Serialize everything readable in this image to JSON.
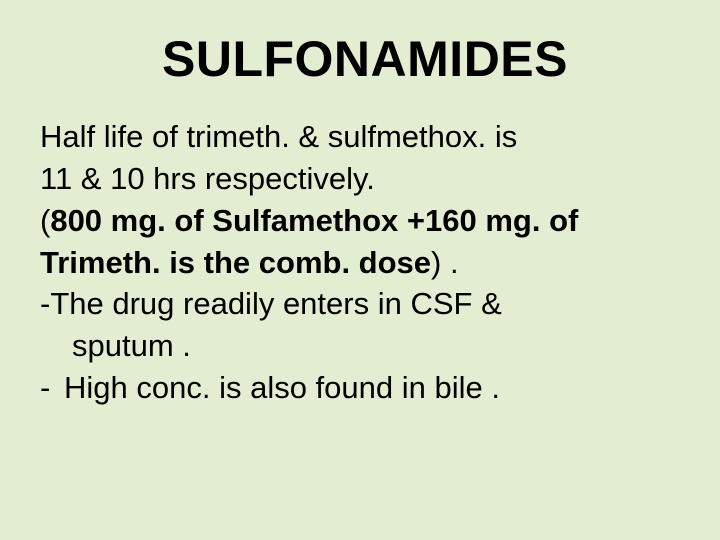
{
  "slide": {
    "background_color": "#e2edd2",
    "text_color": "#000000",
    "title": {
      "text": "SULFONAMIDES",
      "font_size_pt": 50,
      "font_weight": 700
    },
    "body": {
      "font_size_pt": 31,
      "line_height": 1.35,
      "line1": " Half life of trimeth. & sulfmethox. is",
      "line2": " 11 & 10 hrs respectively.",
      "line3_open": "(",
      "line3_bold": "800 mg. of Sulfamethox +160 mg. of",
      "line4_bold": " Trimeth. is the comb. dose",
      "line4_close": ") .",
      "line5": "-The drug  readily enters in CSF &",
      "line6": "sputum .",
      "bullet_dash": "-",
      "line7": "High conc. is also found in bile ."
    }
  }
}
